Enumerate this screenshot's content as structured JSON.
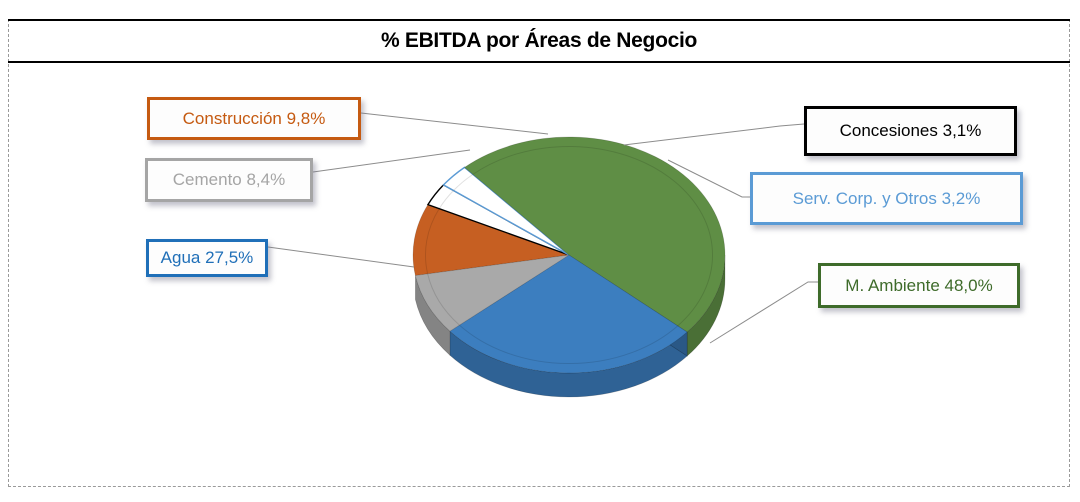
{
  "chart_data": {
    "type": "pie",
    "title": "% EBITDA por Áreas de Negocio",
    "subtype": "3d-pie",
    "categories": [
      "Construcción",
      "Concesiones",
      "Serv. Corp. y Otros",
      "M. Ambiente",
      "Agua",
      "Cemento"
    ],
    "values": [
      9.8,
      3.1,
      3.2,
      48.0,
      27.5,
      8.4
    ],
    "unit": "%",
    "labels": [
      {
        "name": "Construcción",
        "text": "Construcción 9,8%",
        "color": "#C55A11"
      },
      {
        "name": "Concesiones",
        "text": "Concesiones 3,1%",
        "color": "#000000"
      },
      {
        "name": "Serv. Corp. y Otros",
        "text": "Serv. Corp. y Otros 3,2%",
        "color": "#5B9BD5"
      },
      {
        "name": "M. Ambiente",
        "text": "M. Ambiente 48,0%",
        "color": "#3E6B2A"
      },
      {
        "name": "Agua",
        "text": "Agua 27,5%",
        "color": "#1F6FB8"
      },
      {
        "name": "Cemento",
        "text": "Cemento 8,4%",
        "color": "#A5A5A5"
      }
    ],
    "slice_colors": {
      "Construcción": "#C65F22",
      "Concesiones": "#FFFFFF",
      "Serv. Corp. y Otros": "#FFFFFF",
      "M. Ambiente": "#5F8E45",
      "Agua": "#3C7EBF",
      "Cemento": "#A9A9A9"
    },
    "legend": "none (data labels with leader lines)"
  },
  "title": "% EBITDA por Áreas de Negocio"
}
